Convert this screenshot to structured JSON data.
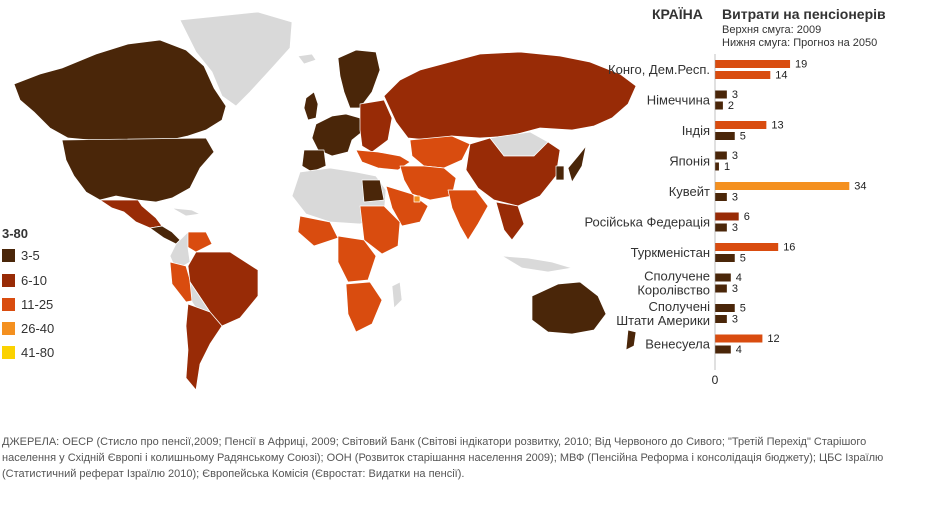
{
  "legend": {
    "title": "3-80",
    "items": [
      {
        "label": "3-5",
        "color": "#4a2609"
      },
      {
        "label": "6-10",
        "color": "#982b06"
      },
      {
        "label": "11-25",
        "color": "#d94c0f"
      },
      {
        "label": "26-40",
        "color": "#f4901f"
      },
      {
        "label": "41-80",
        "color": "#fbd200"
      }
    ],
    "no_data_color": "#d9d9d9"
  },
  "chart_header": {
    "country_label": "КРАЇНА",
    "title": "Витрати на пенсіонерів",
    "subtitle_top": "Верхня смуга: 2009",
    "subtitle_bottom": "Нижня смуга: Прогноз на 2050"
  },
  "chart_data": {
    "type": "bar",
    "orientation": "horizontal",
    "categories": [
      "Конго, Дем.Респ.",
      "Німеччина",
      "Індія",
      "Японія",
      "Кувейт",
      "Російська Федерація",
      "Туркменістан",
      "Сполучене Королівство",
      "Сполучені Штати Америки",
      "Венесуела"
    ],
    "series": [
      {
        "values": [
          19,
          3,
          13,
          3,
          34,
          6,
          16,
          4,
          5,
          12
        ]
      },
      {
        "values": [
          14,
          2,
          5,
          1,
          3,
          3,
          5,
          3,
          3,
          4
        ]
      }
    ],
    "xtick_labels": [
      "0"
    ],
    "xlim": [
      0,
      40
    ]
  },
  "sources": "ДЖЕРЕЛА: ОЕСР (Стисло про пенсії,2009; Пенсії в Африці, 2009; Світовий Банк (Світові індікатори розвитку, 2010; Від Червоного до Сивого; \"Третій Перехід\" Старішого населення у Східній Європі і колишньому Радянському Союзі); ООН (Розвиток старішання населення 2009); МВФ (Пенсійна Реформа і консолідація бюджету); ЦБС Ізраїлю (Статистичний реферат Ізраїлю 2010); Європейська Комісія (Євростат: Видатки на пенсії)."
}
